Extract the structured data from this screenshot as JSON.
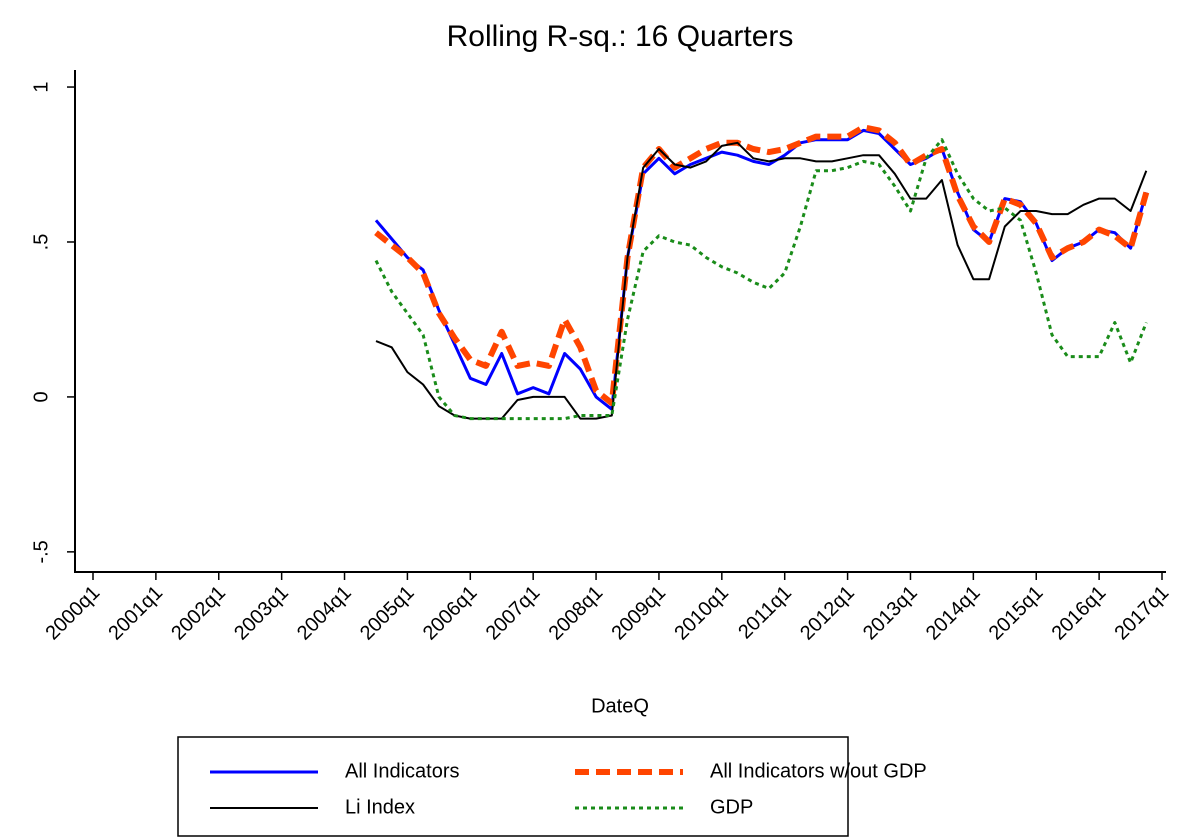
{
  "chart_data": {
    "type": "line",
    "title": "Rolling R-sq.: 16 Quarters",
    "x_label": "DateQ",
    "x": [
      "2004q3",
      "2004q4",
      "2005q1",
      "2005q2",
      "2005q3",
      "2005q4",
      "2006q1",
      "2006q2",
      "2006q3",
      "2006q4",
      "2007q1",
      "2007q2",
      "2007q3",
      "2007q4",
      "2008q1",
      "2008q2",
      "2008q3",
      "2008q4",
      "2009q1",
      "2009q2",
      "2009q3",
      "2009q4",
      "2010q1",
      "2010q2",
      "2010q3",
      "2010q4",
      "2011q1",
      "2011q2",
      "2011q3",
      "2011q4",
      "2012q1",
      "2012q2",
      "2012q3",
      "2012q4",
      "2013q1",
      "2013q2",
      "2013q3",
      "2013q4",
      "2014q1",
      "2014q2",
      "2014q3",
      "2014q4",
      "2015q1",
      "2015q2",
      "2015q3",
      "2015q4",
      "2016q1",
      "2016q2",
      "2016q3",
      "2016q4"
    ],
    "series": [
      {
        "name": "All Indicators",
        "color": "#0000ff",
        "width": 3,
        "dash": "none",
        "values": [
          0.57,
          0.51,
          0.45,
          0.41,
          0.28,
          0.17,
          0.06,
          0.04,
          0.14,
          0.01,
          0.03,
          0.01,
          0.14,
          0.09,
          0.0,
          -0.04,
          0.45,
          0.72,
          0.77,
          0.72,
          0.75,
          0.77,
          0.79,
          0.78,
          0.76,
          0.75,
          0.78,
          0.82,
          0.83,
          0.83,
          0.83,
          0.86,
          0.85,
          0.8,
          0.75,
          0.77,
          0.8,
          0.66,
          0.54,
          0.5,
          0.64,
          0.63,
          0.56,
          0.44,
          0.48,
          0.5,
          0.54,
          0.53,
          0.48,
          0.66
        ]
      },
      {
        "name": "All Indicators w/out GDP",
        "color": "#ff4500",
        "width": 6,
        "dash": "14 7",
        "values": [
          0.53,
          0.49,
          0.45,
          0.4,
          0.27,
          0.19,
          0.12,
          0.1,
          0.21,
          0.1,
          0.11,
          0.1,
          0.25,
          0.16,
          0.02,
          -0.02,
          0.45,
          0.74,
          0.8,
          0.74,
          0.77,
          0.8,
          0.82,
          0.82,
          0.8,
          0.79,
          0.8,
          0.82,
          0.84,
          0.84,
          0.84,
          0.87,
          0.86,
          0.82,
          0.75,
          0.78,
          0.8,
          0.65,
          0.55,
          0.5,
          0.64,
          0.62,
          0.56,
          0.45,
          0.48,
          0.5,
          0.54,
          0.52,
          0.48,
          0.66
        ]
      },
      {
        "name": "Li Index",
        "color": "#000000",
        "width": 2,
        "dash": "none",
        "values": [
          0.18,
          0.16,
          0.08,
          0.04,
          -0.03,
          -0.06,
          -0.07,
          -0.07,
          -0.07,
          -0.01,
          0.0,
          0.0,
          0.0,
          -0.07,
          -0.07,
          -0.06,
          0.45,
          0.74,
          0.8,
          0.75,
          0.74,
          0.76,
          0.81,
          0.82,
          0.77,
          0.76,
          0.77,
          0.77,
          0.76,
          0.76,
          0.77,
          0.78,
          0.78,
          0.72,
          0.64,
          0.64,
          0.7,
          0.49,
          0.38,
          0.38,
          0.55,
          0.6,
          0.6,
          0.59,
          0.59,
          0.62,
          0.64,
          0.64,
          0.6,
          0.73
        ]
      },
      {
        "name": "GDP",
        "color": "#1a8c1a",
        "width": 3,
        "dash": "4 4",
        "values": [
          0.44,
          0.34,
          0.27,
          0.2,
          0.0,
          -0.06,
          -0.07,
          -0.07,
          -0.07,
          -0.07,
          -0.07,
          -0.07,
          -0.07,
          -0.06,
          -0.06,
          -0.06,
          0.25,
          0.47,
          0.52,
          0.5,
          0.49,
          0.45,
          0.42,
          0.4,
          0.37,
          0.35,
          0.4,
          0.55,
          0.73,
          0.73,
          0.74,
          0.76,
          0.75,
          0.68,
          0.6,
          0.77,
          0.83,
          0.72,
          0.64,
          0.6,
          0.61,
          0.57,
          0.4,
          0.2,
          0.13,
          0.13,
          0.13,
          0.24,
          0.11,
          0.24
        ]
      }
    ],
    "xlim": [
      "2000q1",
      "2017q1"
    ],
    "xticks": [
      "2000q1",
      "2001q1",
      "2002q1",
      "2003q1",
      "2004q1",
      "2005q1",
      "2006q1",
      "2007q1",
      "2008q1",
      "2009q1",
      "2010q1",
      "2011q1",
      "2012q1",
      "2013q1",
      "2014q1",
      "2015q1",
      "2016q1",
      "2017q1"
    ],
    "ylim": [
      -0.565,
      1.055
    ],
    "yticks": [
      {
        "value": -0.5,
        "label": "-.5"
      },
      0,
      {
        "value": 0.5,
        "label": ".5"
      },
      1
    ],
    "legend": "bottom"
  }
}
